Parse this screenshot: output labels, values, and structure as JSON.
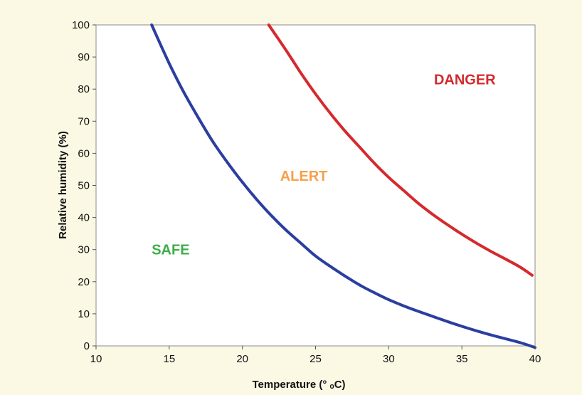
{
  "chart_data": {
    "type": "line",
    "xlabel": "Temperature (° ₒC)",
    "ylabel": "Relative humidity (%)",
    "xlim": [
      10,
      40
    ],
    "ylim": [
      0,
      100
    ],
    "xticks": [
      "10",
      "15",
      "20",
      "25",
      "30",
      "35",
      "40"
    ],
    "yticks": [
      "0",
      "10",
      "20",
      "30",
      "40",
      "50",
      "60",
      "70",
      "80",
      "90",
      "100"
    ],
    "grid": false,
    "series": [
      {
        "color": "#2b3ea0",
        "x": [
          13.8,
          15,
          16,
          17,
          18,
          19,
          20,
          21,
          22,
          23,
          24,
          25,
          26,
          27,
          28,
          29,
          30,
          31,
          32,
          33,
          34,
          35,
          36,
          37,
          38,
          39,
          40
        ],
        "y": [
          100,
          88,
          79,
          71,
          63.5,
          57,
          51,
          45.5,
          40.5,
          36,
          32,
          28,
          24.8,
          21.8,
          19,
          16.6,
          14.4,
          12.5,
          10.8,
          9.2,
          7.6,
          6.1,
          4.7,
          3.4,
          2.2,
          1,
          -0.5
        ]
      },
      {
        "color": "#d42a2e",
        "x": [
          21.8,
          23,
          24,
          25,
          26,
          27,
          28,
          29,
          30,
          31,
          32,
          33,
          34,
          35,
          36,
          37,
          38,
          39,
          39.8
        ],
        "y": [
          100,
          92,
          85,
          78.5,
          72.5,
          67,
          62,
          57,
          52.5,
          48.5,
          44.5,
          41,
          37.8,
          34.8,
          32,
          29.4,
          27,
          24.5,
          22
        ]
      }
    ],
    "annotations": [
      {
        "text": "SAFE",
        "x": 15.1,
        "y": 30,
        "color": "#3fae49"
      },
      {
        "text": "ALERT",
        "x": 24.2,
        "y": 53,
        "color": "#f5a04a"
      },
      {
        "text": "DANGER",
        "x": 35.2,
        "y": 83,
        "color": "#d42a2e"
      }
    ]
  }
}
